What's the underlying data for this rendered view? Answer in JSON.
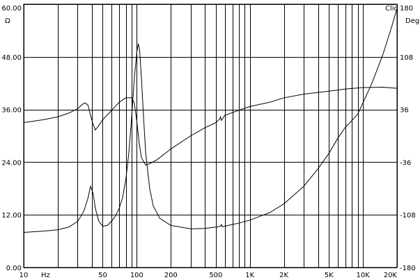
{
  "chart_data": {
    "type": "line",
    "brand_label": "Clio",
    "left_axis": {
      "unit": "Ω",
      "ylim": [
        0,
        60
      ],
      "ticks": [
        0,
        12,
        24,
        36,
        48,
        60
      ],
      "tick_labels": [
        "0.00",
        "12.00",
        "24.00",
        "36.00",
        "48.00",
        "60.00"
      ]
    },
    "right_axis": {
      "unit": "Deg",
      "ylim": [
        -180,
        180
      ],
      "ticks": [
        -180,
        -108,
        -36,
        36,
        108,
        180
      ],
      "tick_labels": [
        "-180",
        "-108",
        "-36",
        "36",
        "108",
        "180"
      ]
    },
    "x_axis": {
      "scale": "log",
      "unit": "Hz",
      "xlim": [
        10,
        20000
      ],
      "ticks": [
        10,
        50,
        100,
        200,
        500,
        1000,
        2000,
        5000,
        10000,
        20000
      ],
      "tick_labels": [
        "10",
        "50",
        "100",
        "200",
        "500",
        "1K",
        "2K",
        "5K",
        "10K",
        "20K"
      ],
      "grid_lines": [
        10,
        20,
        30,
        40,
        50,
        60,
        70,
        80,
        90,
        100,
        200,
        300,
        400,
        500,
        600,
        700,
        800,
        900,
        1000,
        2000,
        3000,
        4000,
        5000,
        6000,
        7000,
        8000,
        9000,
        10000,
        20000
      ]
    },
    "grid": true,
    "series": [
      {
        "axis": "left",
        "points": [
          [
            10,
            8.0
          ],
          [
            15,
            8.3
          ],
          [
            20,
            8.6
          ],
          [
            25,
            9.2
          ],
          [
            30,
            10.5
          ],
          [
            34,
            12.8
          ],
          [
            37,
            15.8
          ],
          [
            39,
            18.5
          ],
          [
            41,
            17.0
          ],
          [
            43,
            13.5
          ],
          [
            46,
            10.6
          ],
          [
            50,
            9.4
          ],
          [
            55,
            9.6
          ],
          [
            60,
            10.6
          ],
          [
            65,
            11.8
          ],
          [
            70,
            13.5
          ],
          [
            75,
            16.0
          ],
          [
            80,
            20.0
          ],
          [
            85,
            26.0
          ],
          [
            90,
            34.0
          ],
          [
            95,
            43.0
          ],
          [
            100,
            49.0
          ],
          [
            103,
            51.0
          ],
          [
            106,
            49.5
          ],
          [
            110,
            43.0
          ],
          [
            115,
            34.0
          ],
          [
            120,
            26.0
          ],
          [
            130,
            18.0
          ],
          [
            140,
            14.0
          ],
          [
            160,
            11.2
          ],
          [
            200,
            9.6
          ],
          [
            300,
            8.8
          ],
          [
            400,
            8.9
          ],
          [
            500,
            9.2
          ],
          [
            550,
            9.4
          ],
          [
            560,
            9.8
          ],
          [
            570,
            9.3
          ],
          [
            600,
            9.4
          ],
          [
            700,
            9.8
          ],
          [
            800,
            10.1
          ],
          [
            1000,
            10.8
          ],
          [
            1500,
            12.5
          ],
          [
            2000,
            14.5
          ],
          [
            3000,
            18.5
          ],
          [
            4000,
            22.5
          ],
          [
            5000,
            26.0
          ],
          [
            6000,
            29.5
          ],
          [
            7000,
            32.0
          ],
          [
            8000,
            33.5
          ],
          [
            9000,
            35.0
          ],
          [
            10000,
            37.5
          ],
          [
            12000,
            42.0
          ],
          [
            15000,
            48.5
          ],
          [
            18000,
            55.0
          ],
          [
            20000,
            59.0
          ]
        ]
      },
      {
        "axis": "right",
        "points": [
          [
            10,
            18.0
          ],
          [
            15,
            22.0
          ],
          [
            20,
            26.0
          ],
          [
            25,
            31.0
          ],
          [
            30,
            37.0
          ],
          [
            33,
            43.0
          ],
          [
            35,
            45.0
          ],
          [
            37,
            42.0
          ],
          [
            39,
            28.0
          ],
          [
            41,
            16.0
          ],
          [
            43,
            8.0
          ],
          [
            45,
            12.0
          ],
          [
            50,
            22.0
          ],
          [
            60,
            35.0
          ],
          [
            70,
            46.0
          ],
          [
            80,
            52.0
          ],
          [
            90,
            52.0
          ],
          [
            95,
            45.0
          ],
          [
            100,
            20.0
          ],
          [
            105,
            -10.0
          ],
          [
            110,
            -30.0
          ],
          [
            120,
            -40.0
          ],
          [
            130,
            -38.0
          ],
          [
            150,
            -33.0
          ],
          [
            200,
            -18.0
          ],
          [
            300,
            0.0
          ],
          [
            400,
            11.0
          ],
          [
            500,
            18.0
          ],
          [
            540,
            23.0
          ],
          [
            550,
            26.0
          ],
          [
            560,
            21.0
          ],
          [
            600,
            28.0
          ],
          [
            800,
            35.0
          ],
          [
            1000,
            40.0
          ],
          [
            1500,
            46.0
          ],
          [
            2000,
            52.0
          ],
          [
            3000,
            57.0
          ],
          [
            5000,
            61.0
          ],
          [
            7000,
            64.0
          ],
          [
            10000,
            66.0
          ],
          [
            15000,
            66.5
          ],
          [
            20000,
            65.0
          ]
        ]
      }
    ]
  }
}
